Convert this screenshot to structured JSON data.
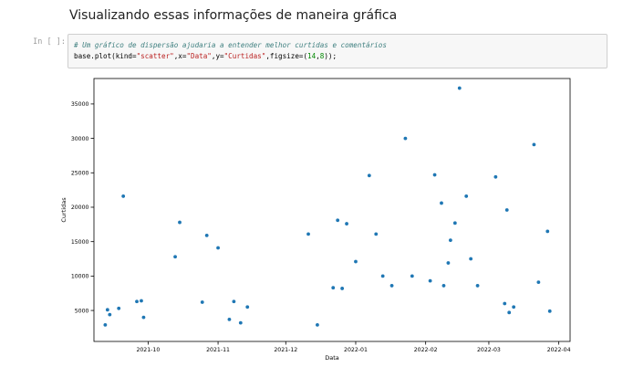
{
  "notebook": {
    "heading": "Visualizando essas informações de maneira gráfica",
    "cell": {
      "prompt": "In [ ]:",
      "comment": "# Um gráfico de dispersão ajudaria a entender melhor curtidas e comentários",
      "code": {
        "prefix": "base.plot(kind=",
        "s1": "\"scatter\"",
        "mid1": ",x=",
        "s2": "\"Data\"",
        "mid2": ",y=",
        "s3": "\"Curtidas\"",
        "mid3": ",figsize=(",
        "n1": "14",
        "comma": ",",
        "n2": "8",
        "suffix": "));"
      }
    }
  },
  "chart_data": {
    "type": "scatter",
    "xlabel": "Data",
    "ylabel": "Curtidas",
    "xlim": [
      "2021-09-07",
      "2022-04-06"
    ],
    "ylim": [
      500,
      38700
    ],
    "xticks": [
      "2021-10-01",
      "2021-11-01",
      "2021-12-01",
      "2022-01-01",
      "2022-02-01",
      "2022-03-01",
      "2022-04-01"
    ],
    "xtick_labels": [
      "2021-10",
      "2021-11",
      "2021-12",
      "2022-01",
      "2022-02",
      "2022-03",
      "2022-04"
    ],
    "yticks": [
      5000,
      10000,
      15000,
      20000,
      25000,
      30000,
      35000
    ],
    "ytick_labels": [
      "5000",
      "10000",
      "15000",
      "20000",
      "25000",
      "30000",
      "35000"
    ],
    "marker_color": "#1f77b4",
    "points": [
      {
        "x": "2021-09-12",
        "y": 2900
      },
      {
        "x": "2021-09-13",
        "y": 5100
      },
      {
        "x": "2021-09-14",
        "y": 4400
      },
      {
        "x": "2021-09-18",
        "y": 5300
      },
      {
        "x": "2021-09-20",
        "y": 21600
      },
      {
        "x": "2021-09-26",
        "y": 6300
      },
      {
        "x": "2021-09-28",
        "y": 6400
      },
      {
        "x": "2021-09-29",
        "y": 4000
      },
      {
        "x": "2021-10-13",
        "y": 12800
      },
      {
        "x": "2021-10-15",
        "y": 17800
      },
      {
        "x": "2021-10-25",
        "y": 6200
      },
      {
        "x": "2021-10-27",
        "y": 15900
      },
      {
        "x": "2021-11-01",
        "y": 14100
      },
      {
        "x": "2021-11-06",
        "y": 3700
      },
      {
        "x": "2021-11-08",
        "y": 6300
      },
      {
        "x": "2021-11-11",
        "y": 3200
      },
      {
        "x": "2021-11-14",
        "y": 5500
      },
      {
        "x": "2021-12-11",
        "y": 16100
      },
      {
        "x": "2021-12-15",
        "y": 2900
      },
      {
        "x": "2021-12-22",
        "y": 8300
      },
      {
        "x": "2021-12-24",
        "y": 18100
      },
      {
        "x": "2021-12-26",
        "y": 8200
      },
      {
        "x": "2021-12-28",
        "y": 17600
      },
      {
        "x": "2022-01-01",
        "y": 12100
      },
      {
        "x": "2022-01-07",
        "y": 24600
      },
      {
        "x": "2022-01-10",
        "y": 16100
      },
      {
        "x": "2022-01-13",
        "y": 10000
      },
      {
        "x": "2022-01-17",
        "y": 8600
      },
      {
        "x": "2022-01-23",
        "y": 30000
      },
      {
        "x": "2022-01-26",
        "y": 10000
      },
      {
        "x": "2022-02-03",
        "y": 9300
      },
      {
        "x": "2022-02-05",
        "y": 24700
      },
      {
        "x": "2022-02-08",
        "y": 20600
      },
      {
        "x": "2022-02-09",
        "y": 8600
      },
      {
        "x": "2022-02-11",
        "y": 11900
      },
      {
        "x": "2022-02-12",
        "y": 15200
      },
      {
        "x": "2022-02-14",
        "y": 17700
      },
      {
        "x": "2022-02-16",
        "y": 37300
      },
      {
        "x": "2022-02-19",
        "y": 21600
      },
      {
        "x": "2022-02-21",
        "y": 12500
      },
      {
        "x": "2022-02-24",
        "y": 8600
      },
      {
        "x": "2022-03-04",
        "y": 24400
      },
      {
        "x": "2022-03-08",
        "y": 6000
      },
      {
        "x": "2022-03-09",
        "y": 19600
      },
      {
        "x": "2022-03-10",
        "y": 4700
      },
      {
        "x": "2022-03-12",
        "y": 5500
      },
      {
        "x": "2022-03-21",
        "y": 29100
      },
      {
        "x": "2022-03-23",
        "y": 9100
      },
      {
        "x": "2022-03-27",
        "y": 16500
      },
      {
        "x": "2022-03-28",
        "y": 4900
      }
    ]
  }
}
